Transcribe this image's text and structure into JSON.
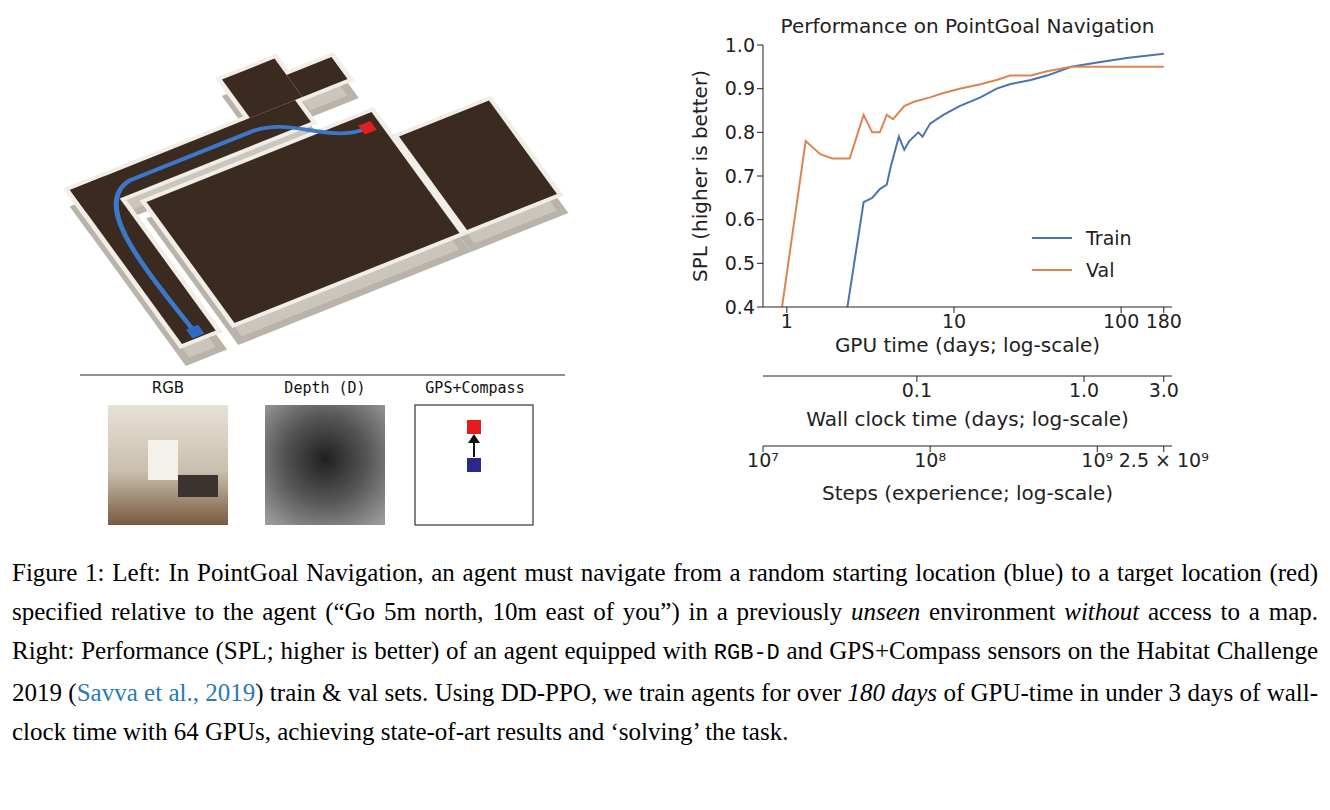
{
  "chart_data": {
    "type": "line",
    "title": "Performance on PointGoal Navigation",
    "x_label": "Steps (experience; log-scale)",
    "y_label": "SPL (higher is better)",
    "log": "x",
    "grid": false,
    "legend": "lower right",
    "xlim": [
      10000000,
      2800000000
    ],
    "xticks": [
      {
        "value": 10000000,
        "label": "10⁷"
      },
      {
        "value": 100000000,
        "label": "10⁸"
      },
      {
        "value": 1000000000,
        "label": "10⁹"
      },
      {
        "value": 2500000000,
        "label": "2.5 × 10⁹"
      }
    ],
    "ylim": [
      0.4,
      1
    ],
    "yticks": [
      0.4,
      0.5,
      0.6,
      0.7,
      0.8,
      0.9,
      {
        "value": 1,
        "label": "1.0"
      }
    ],
    "series": [
      {
        "name": "Train",
        "color": "#4c72b0",
        "x": [
          32000000,
          40000000,
          45000000,
          50000000,
          55000000,
          58000000,
          65000000,
          70000000,
          75000000,
          85000000,
          90000000,
          100000000,
          120000000,
          150000000,
          200000000,
          250000000,
          300000000,
          400000000,
          500000000,
          700000000,
          1000000000,
          1500000000,
          2500000000
        ],
        "values": [
          0.4,
          0.64,
          0.65,
          0.67,
          0.68,
          0.72,
          0.79,
          0.76,
          0.78,
          0.8,
          0.79,
          0.82,
          0.84,
          0.86,
          0.88,
          0.9,
          0.91,
          0.92,
          0.93,
          0.95,
          0.96,
          0.97,
          0.98
        ]
      },
      {
        "name": "Val",
        "color": "#dd8452",
        "x": [
          13000000,
          18000000,
          22000000,
          26000000,
          33000000,
          40000000,
          45000000,
          50000000,
          55000000,
          60000000,
          70000000,
          80000000,
          100000000,
          120000000,
          150000000,
          200000000,
          250000000,
          300000000,
          400000000,
          500000000,
          700000000,
          1000000000,
          1500000000,
          2500000000
        ],
        "values": [
          0.4,
          0.78,
          0.75,
          0.74,
          0.74,
          0.84,
          0.8,
          0.8,
          0.84,
          0.83,
          0.86,
          0.87,
          0.88,
          0.89,
          0.9,
          0.91,
          0.92,
          0.93,
          0.93,
          0.94,
          0.95,
          0.95,
          0.95,
          0.95
        ]
      }
    ],
    "secondary_x_axes": [
      {
        "label": "GPU time (days; log-scale)",
        "xlim": [
          0.72,
          201.6
        ],
        "xticks": [
          1,
          10,
          100,
          180
        ]
      },
      {
        "label": "Wall clock time (days; log-scale)",
        "xlim": [
          0.012,
          3.36
        ],
        "xticks": [
          0.1,
          {
            "value": 1,
            "label": "1.0"
          },
          {
            "value": 3,
            "label": "3.0"
          }
        ]
      }
    ]
  },
  "left_panel": {
    "sensors": [
      "RGB",
      "Depth (D)",
      "GPS+Compass"
    ]
  },
  "caption": [
    {
      "text": "Figure 1: Left: In PointGoal Navigation, an agent must navigate from a random starting location (blue) to a target location (red) specified relative to the agent (“Go 5m north, 10m east of you”) in a previously "
    },
    {
      "text": "unseen",
      "italic": true
    },
    {
      "text": " environment "
    },
    {
      "text": "without",
      "italic": true
    },
    {
      "text": " access to a map. Right: Performance (SPL; higher is better) of an agent equipped with "
    },
    {
      "text": "RGB-D",
      "mono": true
    },
    {
      "text": " and GPS+Compass sensors on the Habitat Challenge 2019 ("
    },
    {
      "text": "Savva et al., 2019",
      "link": true
    },
    {
      "text": ") train & val sets. Using DD-PPO, we train agents for over "
    },
    {
      "text": "180 days",
      "italic": true
    },
    {
      "text": " of GPU-time in under 3 days of wall-clock time with 64 GPUs, achieving state-of-art results and ‘solving’ the task."
    }
  ]
}
